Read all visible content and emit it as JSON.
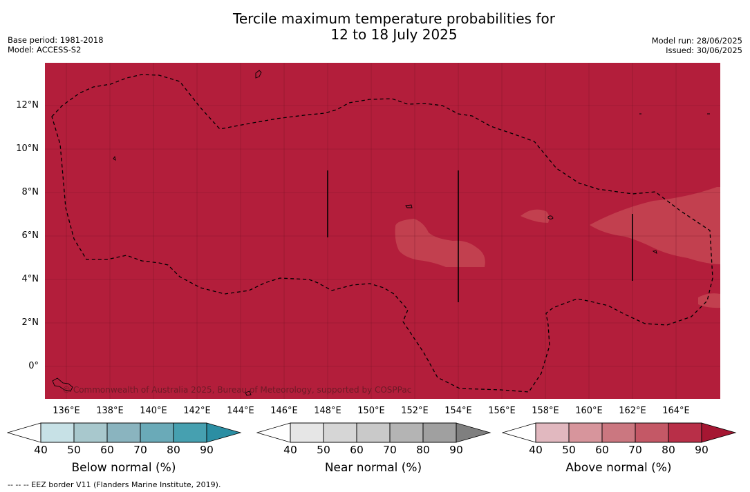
{
  "title": {
    "line1": "Tercile maximum temperature probabilities for",
    "line2": "12 to 18 July 2025"
  },
  "meta_left": {
    "base_period": "Base period: 1981-2018",
    "model": "Model: ACCESS-S2"
  },
  "meta_right": {
    "model_run": "Model run: 28/06/2025",
    "issued": "Issued: 30/06/2025"
  },
  "map": {
    "fill_color": "#b31e3b",
    "lighter_fill_color": "#c2404f",
    "lat_labels": [
      "12°N",
      "10°N",
      "8°N",
      "6°N",
      "4°N",
      "2°N",
      "0°"
    ],
    "lon_labels": [
      "136°E",
      "138°E",
      "140°E",
      "142°E",
      "144°E",
      "146°E",
      "148°E",
      "150°E",
      "152°E",
      "154°E",
      "156°E",
      "158°E",
      "160°E",
      "162°E",
      "164°E"
    ],
    "copyright": "© Commonwealth of Australia 2025, Bureau of Meteorology, supported by COSPPac"
  },
  "colorbars": [
    {
      "label": "Below normal (%)",
      "ticks": [
        "40",
        "50",
        "60",
        "70",
        "80",
        "90"
      ],
      "colors": [
        "#c7e1e6",
        "#a8c8cd",
        "#8ab4bf",
        "#6aaab8",
        "#46a0b0",
        "#2b8ea3"
      ]
    },
    {
      "label": "Near normal (%)",
      "ticks": [
        "40",
        "50",
        "60",
        "70",
        "80",
        "90"
      ],
      "colors": [
        "#e6e6e6",
        "#d6d6d6",
        "#c9c9c9",
        "#b4b4b4",
        "#a0a0a0",
        "#7f7f7f"
      ]
    },
    {
      "label": "Above normal (%)",
      "ticks": [
        "40",
        "50",
        "60",
        "70",
        "80",
        "90"
      ],
      "colors": [
        "#e1b8bf",
        "#d7959c",
        "#cb7780",
        "#c45866",
        "#b82f48",
        "#a51632"
      ]
    }
  ],
  "footer": "-- -- -- EEZ border V11 (Flanders Marine Institute, 2019)."
}
